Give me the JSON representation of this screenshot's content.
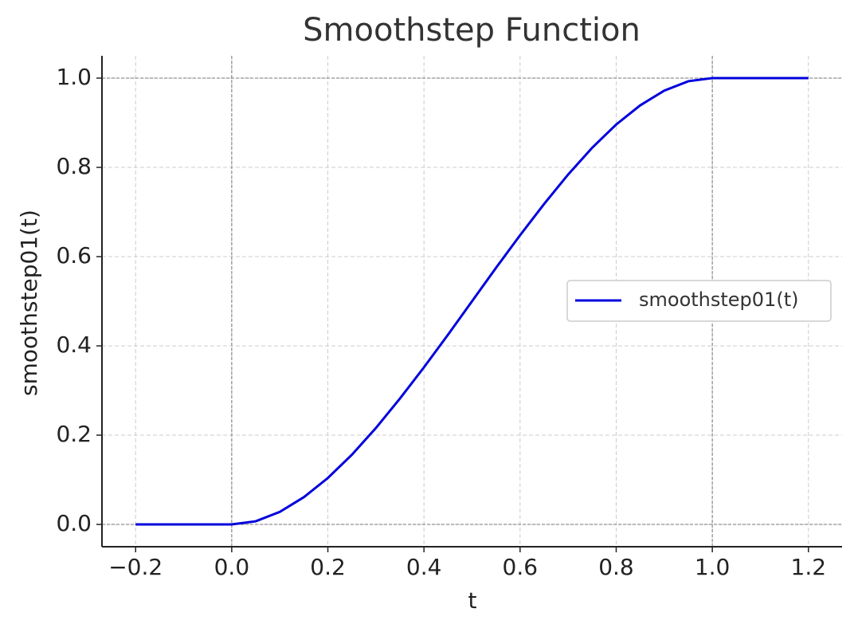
{
  "chart_data": {
    "type": "line",
    "title": "Smoothstep Function",
    "x_label": "t",
    "y_label": "smoothstep01(t)",
    "x": [
      -0.2,
      -0.15,
      -0.1,
      -0.05,
      0,
      0.05,
      0.1,
      0.15,
      0.2,
      0.25,
      0.3,
      0.35,
      0.4,
      0.45,
      0.5,
      0.55,
      0.6,
      0.65,
      0.7,
      0.75,
      0.8,
      0.85,
      0.9,
      0.95,
      1.0,
      1.05,
      1.1,
      1.15,
      1.2
    ],
    "series": [
      {
        "name": "smoothstep01(t)",
        "color": "#0000dd",
        "values": [
          0,
          0,
          0,
          0,
          0,
          0.007,
          0.028,
          0.061,
          0.104,
          0.156,
          0.216,
          0.282,
          0.352,
          0.425,
          0.5,
          0.575,
          0.648,
          0.718,
          0.784,
          0.844,
          0.896,
          0.939,
          0.972,
          0.993,
          1,
          1,
          1,
          1,
          1
        ]
      }
    ],
    "xlim": [
      -0.27,
      1.27
    ],
    "ylim": [
      -0.05,
      1.05
    ],
    "xticks": [
      {
        "value": -0.2,
        "label": "−0.2"
      },
      {
        "value": 0,
        "label": "0.0"
      },
      0.2,
      0.4,
      0.6,
      0.8,
      {
        "value": 1,
        "label": "1.0"
      },
      1.2
    ],
    "yticks": [
      {
        "value": 0,
        "label": "0.0"
      },
      0.2,
      0.4,
      0.6,
      0.8,
      {
        "value": 1,
        "label": "1.0"
      }
    ],
    "grid": true,
    "legend": "right",
    "reference_lines": {
      "x": [
        0,
        1
      ],
      "y": [
        0,
        1
      ]
    }
  }
}
